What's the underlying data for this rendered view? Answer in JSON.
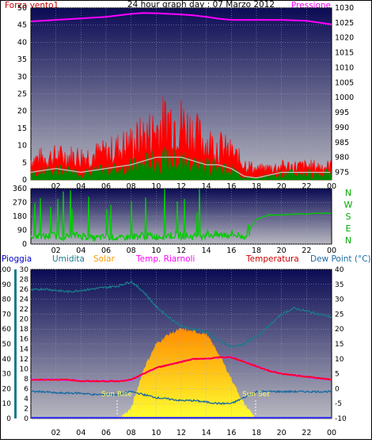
{
  "colors": {
    "frame_bg": "#ffffff",
    "plot_top": "#0a0a50",
    "plot_bottom": "#b4b4bc",
    "grid": "#a0a8c0",
    "wind_avg": "#008800",
    "wind_gust": "#ff0000",
    "pressure": "#ff00ff",
    "direction": "#00cc00",
    "humidity": "#1a7a8a",
    "solar_fill_top": "#ff8c00",
    "solar_fill_bottom": "#ffff00",
    "temp": "#ff0000",
    "dew": "#1a6aa0",
    "feels": "#ff00ff",
    "rain": "#3a3aff"
  },
  "header": {
    "title": "24 hour graph day : 07 Marzo 2012",
    "left_label": "Forza vento1",
    "right_label": "Pressione"
  },
  "wind_panel": {
    "y_ticks": [
      "50",
      "45",
      "40",
      "35",
      "30",
      "25",
      "20",
      "15",
      "10",
      "5",
      "0"
    ],
    "pressure_ticks": [
      "1030",
      "1025",
      "1020",
      "1015",
      "1010",
      "1005",
      "1000",
      "995",
      "990",
      "985",
      "980",
      "975"
    ],
    "x_ticks": [
      "02",
      "04",
      "06",
      "08",
      "10",
      "12",
      "14",
      "16",
      "18",
      "20",
      "22",
      "00"
    ]
  },
  "dir_panel": {
    "y_ticks": [
      "360",
      "270",
      "180",
      "90",
      "0"
    ],
    "compass": [
      "N",
      "W",
      "S",
      "E",
      "N"
    ],
    "x_ticks": [
      "02",
      "04",
      "06",
      "08",
      "10",
      "12",
      "14",
      "16",
      "18",
      "20",
      "22",
      "00"
    ]
  },
  "weather_panel": {
    "labels": {
      "rain": "Pioggia",
      "humidity": "Umidita",
      "solar": "Solar",
      "feels": "Temp. Riarnoli",
      "temp": "Temperatura",
      "dew": "Dew Point (°C)"
    },
    "rain_ticks": [
      "100",
      "90",
      "80",
      "70",
      "60",
      "50",
      "40",
      "30",
      "20",
      "10",
      "0"
    ],
    "solar_ticks": [
      "30",
      "28",
      "26",
      "24",
      "22",
      "20",
      "18",
      "16",
      "14",
      "12",
      "10",
      "8",
      "6",
      "4",
      "2",
      "0"
    ],
    "temp_ticks": [
      "40",
      "35",
      "30",
      "25",
      "20",
      "15",
      "10",
      "5",
      "0",
      "-5",
      "-10"
    ],
    "x_ticks": [
      "02",
      "04",
      "06",
      "08",
      "10",
      "12",
      "14",
      "16",
      "18",
      "20",
      "22",
      "00"
    ],
    "sun_rise": "Sun Rise",
    "sun_set": "Sun Set"
  },
  "chart_data": [
    {
      "type": "line",
      "title": "24 hour graph day : 07 Marzo 2012",
      "xlabel": "",
      "ylabel": "Forza vento1",
      "ylim": [
        0,
        50
      ],
      "y2label": "Pressione",
      "y2lim": [
        972.5,
        1030
      ],
      "x": [
        0,
        2,
        4,
        6,
        8,
        9,
        10,
        11,
        12,
        13,
        14,
        15,
        16,
        17,
        18,
        20,
        22,
        24
      ],
      "series": [
        {
          "name": "Pressione",
          "axis": "right",
          "values": [
            1025.5,
            1026,
            1026.5,
            1027,
            1028,
            1028.3,
            1028.2,
            1028,
            1027.8,
            1027.5,
            1027,
            1026.4,
            1026,
            1026,
            1026,
            1026,
            1025.7,
            1024.5
          ]
        },
        {
          "name": "",
          "values": [
            6,
            7,
            7,
            8,
            11,
            13,
            15,
            18,
            17,
            14,
            11,
            10,
            8,
            5,
            3,
            4,
            4,
            4
          ],
          "note_color": "gust"
        },
        {
          "name": "",
          "values": [
            2,
            3,
            2,
            3,
            4,
            5,
            6,
            6,
            6,
            5,
            4,
            4,
            3,
            1,
            0.5,
            2,
            2,
            2
          ],
          "note_color": "average"
        }
      ]
    },
    {
      "type": "line",
      "ylim": [
        0,
        360
      ],
      "x": [
        0,
        1,
        2,
        3,
        4,
        5,
        6,
        7,
        8,
        9,
        10,
        11,
        12,
        13,
        14,
        15,
        16,
        17,
        18,
        19,
        20,
        21,
        22,
        23,
        24
      ],
      "series": [
        {
          "name": "",
          "values": [
            60,
            50,
            60,
            50,
            60,
            40,
            50,
            40,
            50,
            60,
            50,
            60,
            60,
            50,
            70,
            60,
            70,
            50,
            160,
            190,
            190,
            195,
            195,
            200,
            200
          ]
        }
      ]
    },
    {
      "type": "line",
      "x": [
        0,
        1,
        2,
        3,
        4,
        5,
        6,
        7,
        8,
        9,
        10,
        11,
        12,
        13,
        14,
        15,
        16,
        17,
        18,
        19,
        20,
        21,
        22,
        23,
        24
      ],
      "axes": {
        "rain_ylim": [
          0,
          100
        ],
        "solar_ylim": [
          0,
          30
        ],
        "temp_ylim": [
          -10,
          40
        ]
      },
      "series": [
        {
          "name": "Umidita",
          "axis": "rain",
          "values": [
            86,
            87,
            86,
            85,
            86,
            87,
            88,
            89,
            92,
            85,
            75,
            68,
            62,
            60,
            58,
            52,
            48,
            50,
            55,
            62,
            70,
            74,
            72,
            70,
            68
          ]
        },
        {
          "name": "Temperatura",
          "axis": "temp",
          "values": [
            3,
            3,
            3,
            3,
            2.5,
            2.5,
            2.5,
            2.5,
            3,
            5,
            7,
            8,
            9,
            10,
            10,
            10.5,
            10.5,
            9,
            7.5,
            6,
            5,
            4.5,
            4,
            3.5,
            3
          ]
        },
        {
          "name": "Dew Point (°C)",
          "axis": "temp",
          "values": [
            -1,
            -1,
            -1.5,
            -1.5,
            -1.5,
            -2,
            -2,
            -2,
            -1,
            -2,
            -3,
            -3.5,
            -4,
            -4,
            -4.5,
            -5,
            -5,
            -3,
            -1,
            -1,
            -1,
            -1,
            -1,
            -1,
            -1
          ]
        },
        {
          "name": "Temp. Riarnoli",
          "axis": "temp",
          "values": [
            3,
            3,
            3,
            3,
            2.5,
            2.5,
            2.5,
            2.5,
            3,
            5,
            7,
            8,
            9,
            10,
            10,
            10.5,
            10.5,
            9,
            7.5,
            6,
            5,
            4.5,
            4,
            3.5,
            3
          ]
        },
        {
          "name": "Solar",
          "axis": "solar",
          "values": [
            0,
            0,
            0,
            0,
            0,
            0,
            0,
            0,
            2,
            10,
            15,
            17,
            18,
            17.5,
            17,
            13,
            8,
            3,
            0,
            0,
            0,
            0,
            0,
            0,
            0
          ]
        },
        {
          "name": "Pioggia",
          "axis": "rain",
          "values": [
            0,
            0,
            0,
            0,
            0,
            0,
            0,
            0,
            0,
            0,
            0,
            0,
            0,
            0,
            0,
            0,
            0,
            0,
            0,
            0,
            0,
            0,
            0,
            0,
            0
          ]
        }
      ]
    }
  ]
}
